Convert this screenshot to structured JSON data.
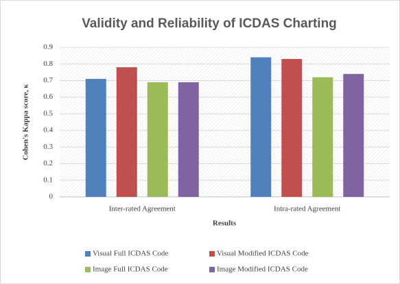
{
  "chart_data": {
    "type": "bar",
    "title": "Validity and Reliability of ICDAS Charting",
    "x_label": "Results",
    "y_label": "Cohen's Kappa score, κ",
    "categories": [
      "Inter-rated Agreement",
      "Intra-rated Agreement"
    ],
    "series": [
      {
        "name": "Visual Full ICDAS Code",
        "color": "#4f81bd",
        "values": [
          0.71,
          0.84
        ]
      },
      {
        "name": "Visual Modified ICDAS Code",
        "color": "#c0504d",
        "values": [
          0.78,
          0.83
        ]
      },
      {
        "name": "Image Full ICDAS Code",
        "color": "#9bbb59",
        "values": [
          0.69,
          0.72
        ]
      },
      {
        "name": "Image Modified ICDAS Code",
        "color": "#8064a2",
        "values": [
          0.69,
          0.74
        ]
      }
    ],
    "ylim": [
      0,
      0.9
    ],
    "yticks": [
      0,
      0.1,
      0.2,
      0.3,
      0.4,
      0.5,
      0.6,
      0.7,
      0.8,
      0.9
    ],
    "grid": true,
    "legend": "bottom"
  }
}
